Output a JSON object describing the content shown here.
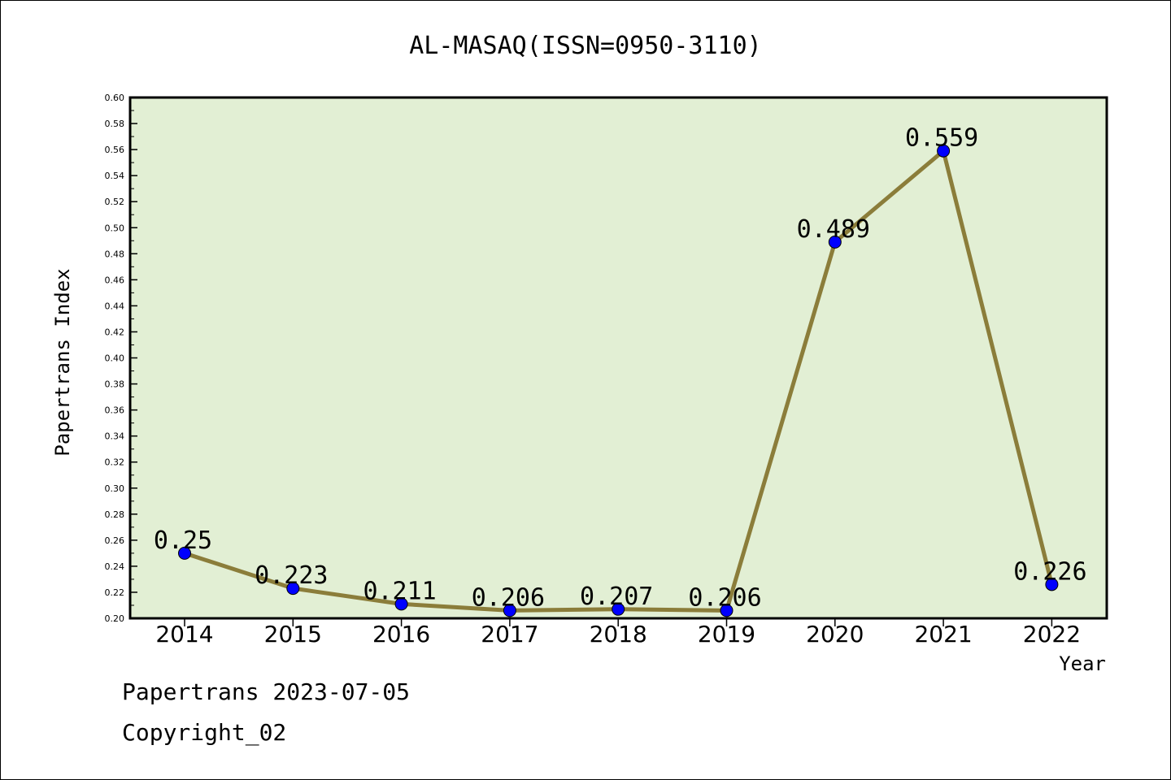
{
  "chart_data": {
    "type": "line",
    "title": "AL-MASAQ(ISSN=0950-3110)",
    "xlabel": "Year",
    "ylabel": "Papertrans Index",
    "x": [
      "2014",
      "2015",
      "2016",
      "2017",
      "2018",
      "2019",
      "2020",
      "2021",
      "2022"
    ],
    "series": [
      {
        "values": [
          0.25,
          0.223,
          0.211,
          0.206,
          0.207,
          0.206,
          0.489,
          0.559,
          0.226
        ]
      }
    ],
    "data_labels": [
      "0.25",
      "0.223",
      "0.211",
      "0.206",
      "0.207",
      "0.206",
      "0.489",
      "0.559",
      "0.226"
    ],
    "ylim": [
      0.2,
      0.6
    ],
    "yticks": [
      "0.20",
      "0.22",
      "0.24",
      "0.26",
      "0.28",
      "0.30",
      "0.32",
      "0.34",
      "0.36",
      "0.38",
      "0.40",
      "0.42",
      "0.44",
      "0.46",
      "0.48",
      "0.50",
      "0.52",
      "0.54",
      "0.56",
      "0.58",
      "0.60"
    ],
    "grid": false,
    "colors": {
      "line": "#8b7d3a",
      "marker": "#0000ff",
      "plot_background": "#e2efd4"
    }
  },
  "footer": {
    "line1": "Papertrans 2023-07-05",
    "line2": "Copyright_02"
  }
}
